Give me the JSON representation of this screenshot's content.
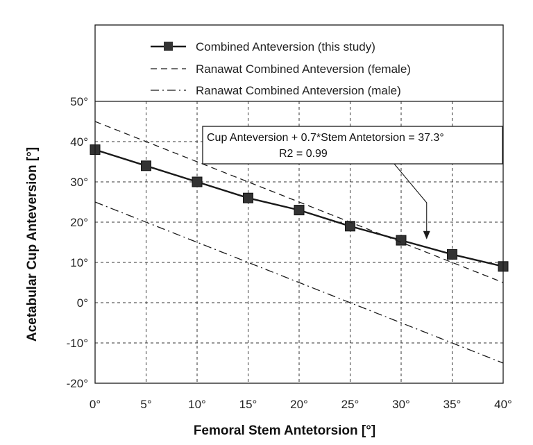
{
  "chart_data": {
    "type": "line",
    "title": "",
    "xlabel": "Femoral Stem Antetorsion [°]",
    "ylabel": "Acetabular Cup Anteversion [°]",
    "xlim": [
      0,
      40
    ],
    "ylim": [
      -20,
      50
    ],
    "xticks": [
      0,
      5,
      10,
      15,
      20,
      25,
      30,
      35,
      40
    ],
    "yticks": [
      -20,
      -10,
      0,
      10,
      20,
      30,
      40,
      50
    ],
    "xtick_labels": [
      "0°",
      "5°",
      "10°",
      "15°",
      "20°",
      "25°",
      "30°",
      "35°",
      "40°"
    ],
    "ytick_labels": [
      "-20°",
      "-10°",
      "0°",
      "10°",
      "20°",
      "30°",
      "40°",
      "50°"
    ],
    "grid": true,
    "legend_position": "above-plot",
    "series": [
      {
        "name": "Combined Anteversion  (this study)",
        "style": "solid-square-markers",
        "color": "#1a1a1a",
        "x": [
          0,
          5,
          10,
          15,
          20,
          25,
          30,
          35,
          40
        ],
        "y": [
          38,
          34,
          30,
          26,
          23,
          19,
          15.5,
          12,
          9
        ]
      },
      {
        "name": "Ranawat  Combined Anteversion (female)",
        "style": "dashed",
        "color": "#1a1a1a",
        "x": [
          0,
          40
        ],
        "y": [
          45,
          5
        ]
      },
      {
        "name": "Ranawat  Combined Anteversion (male)",
        "style": "dash-dot",
        "color": "#1a1a1a",
        "x": [
          0,
          40
        ],
        "y": [
          25,
          -15
        ]
      }
    ],
    "annotation": {
      "line1": "Cup Anteversion + 0.7*Stem Antetorsion = 37.3°",
      "line2": "R2 =   0.99",
      "arrow_target": {
        "x": 32.5,
        "y": 14
      }
    }
  }
}
